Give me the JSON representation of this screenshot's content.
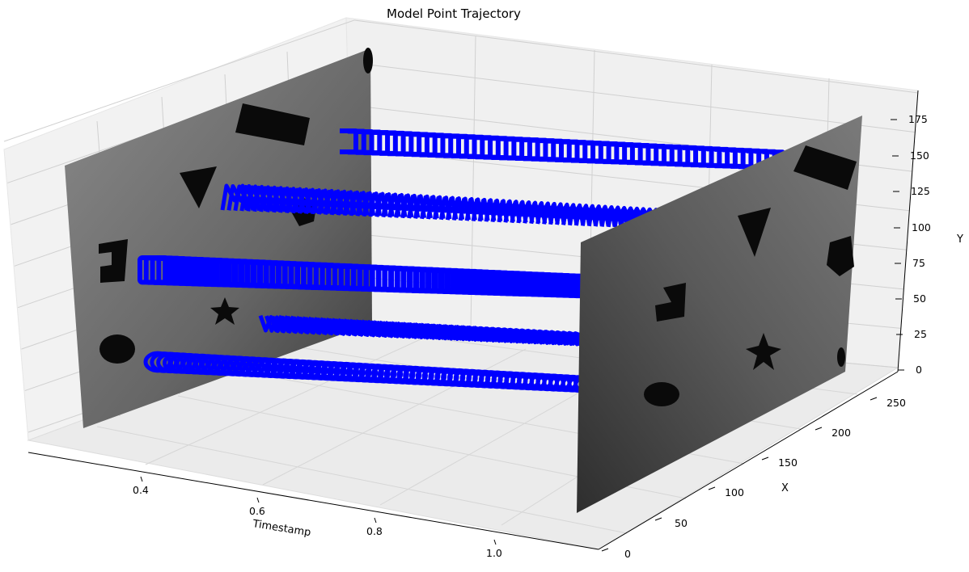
{
  "chart_data": {
    "type": "scatter",
    "projection": "3d",
    "title": "Model Point Trajectory",
    "xlabel": "Timestamp",
    "ylabel": "X",
    "zlabel": "Y",
    "timestamp_ticks": [
      "0.4",
      "0.6",
      "0.8",
      "1.0"
    ],
    "x_ticks": [
      "0",
      "50",
      "100",
      "150",
      "200",
      "250"
    ],
    "y_ticks": [
      "0",
      "25",
      "50",
      "75",
      "100",
      "125",
      "150",
      "175"
    ],
    "timestamp_range": [
      0.25,
      1.13
    ],
    "x_range": [
      -10,
      260
    ],
    "y_range": [
      -10,
      190
    ],
    "grid": true,
    "marker_color": "#0000ff",
    "image_planes": [
      {
        "name": "start-frame",
        "timestamp": 0.35
      },
      {
        "name": "end-frame",
        "timestamp": 1.0
      }
    ],
    "series": [
      {
        "approx_y": 160,
        "shape_width": 12,
        "shape_height": 10
      },
      {
        "approx_y": 120,
        "shape_width": 22,
        "shape_height": 20
      },
      {
        "approx_y": 70,
        "shape_width": 24,
        "shape_height": 18
      },
      {
        "approx_y": 45,
        "shape_width": 20,
        "shape_height": 12
      },
      {
        "approx_y": 15,
        "shape_width": 20,
        "shape_height": 12
      }
    ]
  }
}
